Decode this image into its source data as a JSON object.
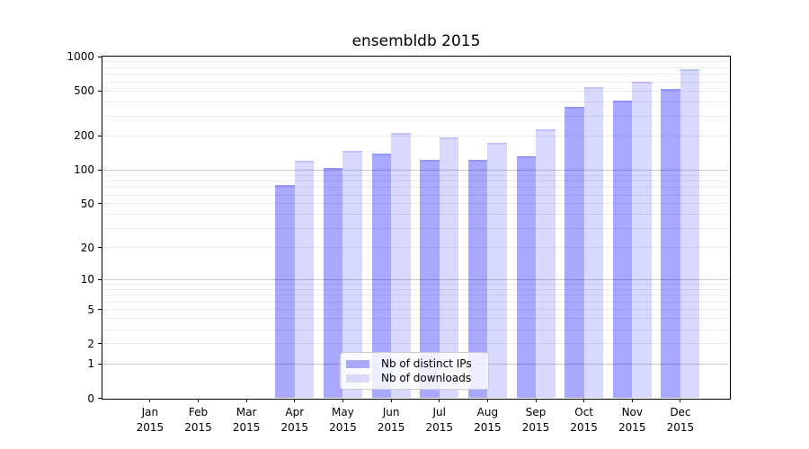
{
  "chart_data": {
    "type": "bar",
    "title": "ensembldb 2015",
    "categories": [
      "Jan 2015",
      "Feb 2015",
      "Mar 2015",
      "Apr 2015",
      "May 2015",
      "Jun 2015",
      "Jul 2015",
      "Aug 2015",
      "Sep 2015",
      "Oct 2015",
      "Nov 2015",
      "Dec 2015"
    ],
    "series": [
      {
        "name": "Nb of distinct IPs",
        "fill": "rgba(0,0,255,0.34)",
        "swatch": "#a9a9f9",
        "values": [
          0,
          0,
          0,
          73,
          105,
          140,
          124,
          123,
          133,
          362,
          408,
          517
        ]
      },
      {
        "name": "Nb of downloads",
        "fill": "rgba(0,0,255,0.15)",
        "swatch": "#d9d9f9",
        "values": [
          0,
          0,
          0,
          121,
          149,
          211,
          193,
          173,
          231,
          536,
          598,
          771
        ]
      }
    ],
    "yscale": "log1p",
    "ylim": [
      0,
      1000
    ],
    "y_ticks": [
      0,
      1,
      2,
      5,
      10,
      20,
      50,
      100,
      200,
      500,
      1000
    ],
    "grid": {
      "horizontal": true,
      "minor_gridlines": true,
      "major_at": [
        1,
        10,
        100
      ]
    },
    "legend": {
      "location": "inside-lower-center",
      "labels": [
        "Nb of distinct IPs",
        "Nb of downloads"
      ]
    }
  }
}
